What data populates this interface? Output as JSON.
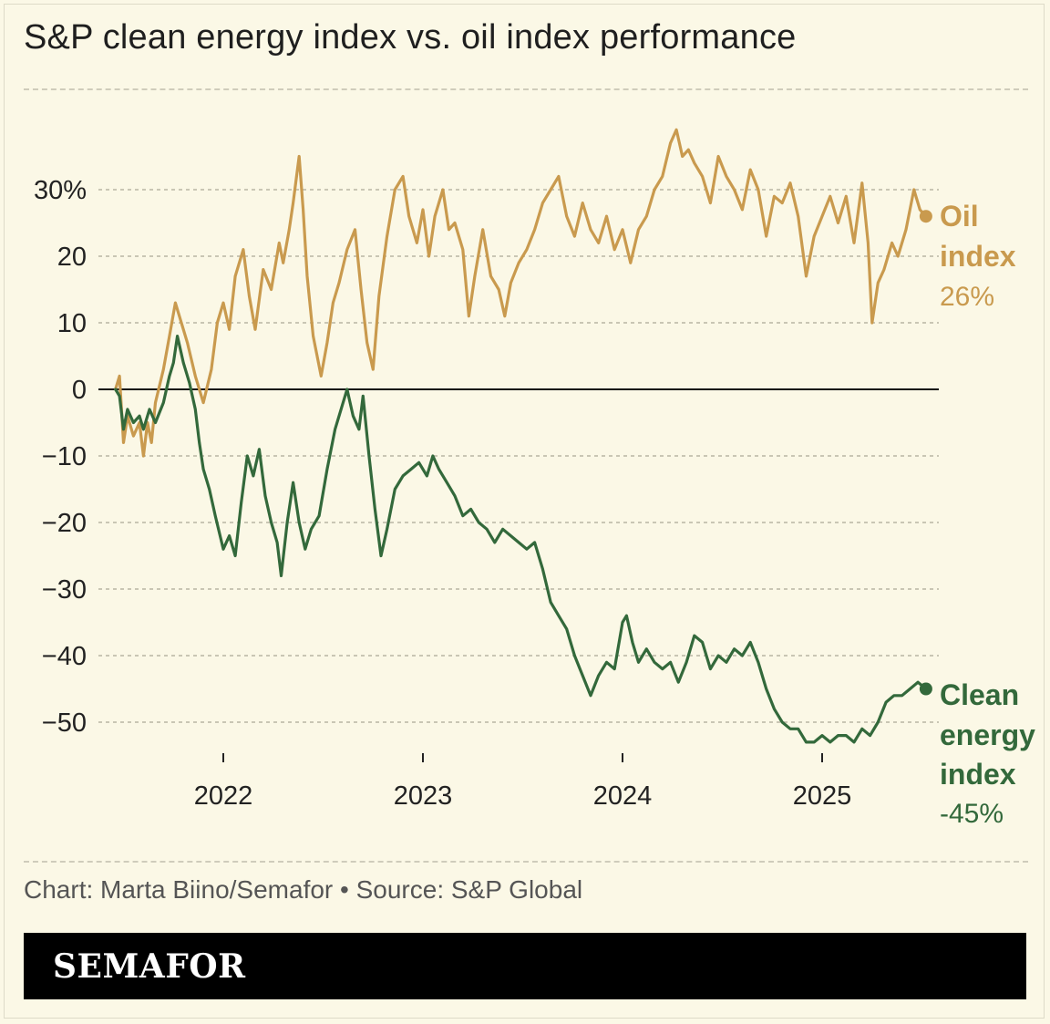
{
  "header": {
    "title": "S&P clean energy index vs. oil index performance"
  },
  "chart_data": {
    "type": "line",
    "title": "S&P clean energy index vs. oil index performance",
    "xlabel": "",
    "ylabel": "",
    "y_unit": "%",
    "ylim": [
      -55,
      40
    ],
    "xlim": [
      2021.45,
      2025.55
    ],
    "y_ticks": [
      {
        "value": 30,
        "label": "30%"
      },
      {
        "value": 20,
        "label": "20"
      },
      {
        "value": 10,
        "label": "10"
      },
      {
        "value": 0,
        "label": "0"
      },
      {
        "value": -10,
        "label": "−10"
      },
      {
        "value": -20,
        "label": "−20"
      },
      {
        "value": -30,
        "label": "−30"
      },
      {
        "value": -40,
        "label": "−40"
      },
      {
        "value": -50,
        "label": "−50"
      }
    ],
    "x_ticks": [
      {
        "value": 2022,
        "label": "2022"
      },
      {
        "value": 2023,
        "label": "2023"
      },
      {
        "value": 2024,
        "label": "2024"
      },
      {
        "value": 2025,
        "label": "2025"
      }
    ],
    "grid": true,
    "series": [
      {
        "name": "Oil index",
        "label_line1": "Oil",
        "label_line2": "index",
        "end_value_label": "26%",
        "color": "#c99a4e",
        "points": [
          [
            2021.46,
            0
          ],
          [
            2021.48,
            2
          ],
          [
            2021.5,
            -8
          ],
          [
            2021.52,
            -4
          ],
          [
            2021.55,
            -7
          ],
          [
            2021.58,
            -5
          ],
          [
            2021.6,
            -10
          ],
          [
            2021.62,
            -5
          ],
          [
            2021.64,
            -8
          ],
          [
            2021.66,
            -2
          ],
          [
            2021.7,
            3
          ],
          [
            2021.73,
            8
          ],
          [
            2021.76,
            13
          ],
          [
            2021.79,
            10
          ],
          [
            2021.82,
            7
          ],
          [
            2021.86,
            2
          ],
          [
            2021.9,
            -2
          ],
          [
            2021.94,
            3
          ],
          [
            2021.97,
            10
          ],
          [
            2022.0,
            13
          ],
          [
            2022.03,
            9
          ],
          [
            2022.06,
            17
          ],
          [
            2022.1,
            21
          ],
          [
            2022.13,
            14
          ],
          [
            2022.16,
            9
          ],
          [
            2022.2,
            18
          ],
          [
            2022.24,
            15
          ],
          [
            2022.28,
            22
          ],
          [
            2022.3,
            19
          ],
          [
            2022.33,
            24
          ],
          [
            2022.35,
            28
          ],
          [
            2022.38,
            35
          ],
          [
            2022.4,
            27
          ],
          [
            2022.42,
            17
          ],
          [
            2022.45,
            8
          ],
          [
            2022.49,
            2
          ],
          [
            2022.52,
            7
          ],
          [
            2022.55,
            13
          ],
          [
            2022.58,
            16
          ],
          [
            2022.62,
            21
          ],
          [
            2022.66,
            24
          ],
          [
            2022.69,
            15
          ],
          [
            2022.72,
            7
          ],
          [
            2022.75,
            3
          ],
          [
            2022.78,
            14
          ],
          [
            2022.82,
            23
          ],
          [
            2022.86,
            30
          ],
          [
            2022.9,
            32
          ],
          [
            2022.93,
            26
          ],
          [
            2022.97,
            22
          ],
          [
            2023.0,
            27
          ],
          [
            2023.03,
            20
          ],
          [
            2023.06,
            26
          ],
          [
            2023.1,
            30
          ],
          [
            2023.13,
            24
          ],
          [
            2023.16,
            25
          ],
          [
            2023.2,
            21
          ],
          [
            2023.23,
            11
          ],
          [
            2023.26,
            17
          ],
          [
            2023.3,
            24
          ],
          [
            2023.34,
            17
          ],
          [
            2023.38,
            15
          ],
          [
            2023.41,
            11
          ],
          [
            2023.44,
            16
          ],
          [
            2023.48,
            19
          ],
          [
            2023.52,
            21
          ],
          [
            2023.56,
            24
          ],
          [
            2023.6,
            28
          ],
          [
            2023.64,
            30
          ],
          [
            2023.68,
            32
          ],
          [
            2023.72,
            26
          ],
          [
            2023.76,
            23
          ],
          [
            2023.8,
            28
          ],
          [
            2023.84,
            24
          ],
          [
            2023.88,
            22
          ],
          [
            2023.92,
            26
          ],
          [
            2023.96,
            21
          ],
          [
            2024.0,
            24
          ],
          [
            2024.04,
            19
          ],
          [
            2024.08,
            24
          ],
          [
            2024.12,
            26
          ],
          [
            2024.16,
            30
          ],
          [
            2024.2,
            32
          ],
          [
            2024.24,
            37
          ],
          [
            2024.27,
            39
          ],
          [
            2024.3,
            35
          ],
          [
            2024.33,
            36
          ],
          [
            2024.36,
            34
          ],
          [
            2024.4,
            32
          ],
          [
            2024.44,
            28
          ],
          [
            2024.48,
            35
          ],
          [
            2024.52,
            32
          ],
          [
            2024.56,
            30
          ],
          [
            2024.6,
            27
          ],
          [
            2024.64,
            33
          ],
          [
            2024.68,
            30
          ],
          [
            2024.72,
            23
          ],
          [
            2024.76,
            29
          ],
          [
            2024.8,
            28
          ],
          [
            2024.84,
            31
          ],
          [
            2024.88,
            26
          ],
          [
            2024.92,
            17
          ],
          [
            2024.96,
            23
          ],
          [
            2025.0,
            26
          ],
          [
            2025.04,
            29
          ],
          [
            2025.08,
            25
          ],
          [
            2025.12,
            29
          ],
          [
            2025.16,
            22
          ],
          [
            2025.2,
            31
          ],
          [
            2025.23,
            22
          ],
          [
            2025.25,
            10
          ],
          [
            2025.28,
            16
          ],
          [
            2025.31,
            18
          ],
          [
            2025.35,
            22
          ],
          [
            2025.38,
            20
          ],
          [
            2025.42,
            24
          ],
          [
            2025.46,
            30
          ],
          [
            2025.49,
            27
          ],
          [
            2025.52,
            26
          ]
        ]
      },
      {
        "name": "Clean energy index",
        "label_line1": "Clean",
        "label_line2": "energy",
        "label_line3": "index",
        "end_value_label": "-45%",
        "color": "#33693b",
        "points": [
          [
            2021.46,
            0
          ],
          [
            2021.48,
            -1
          ],
          [
            2021.5,
            -6
          ],
          [
            2021.52,
            -3
          ],
          [
            2021.55,
            -5
          ],
          [
            2021.58,
            -4
          ],
          [
            2021.6,
            -6
          ],
          [
            2021.63,
            -3
          ],
          [
            2021.66,
            -5
          ],
          [
            2021.7,
            -2
          ],
          [
            2021.73,
            2
          ],
          [
            2021.75,
            4
          ],
          [
            2021.77,
            8
          ],
          [
            2021.8,
            4
          ],
          [
            2021.83,
            1
          ],
          [
            2021.86,
            -3
          ],
          [
            2021.88,
            -8
          ],
          [
            2021.9,
            -12
          ],
          [
            2021.93,
            -15
          ],
          [
            2021.96,
            -19
          ],
          [
            2022.0,
            -24
          ],
          [
            2022.03,
            -22
          ],
          [
            2022.06,
            -25
          ],
          [
            2022.09,
            -17
          ],
          [
            2022.12,
            -10
          ],
          [
            2022.15,
            -13
          ],
          [
            2022.18,
            -9
          ],
          [
            2022.21,
            -16
          ],
          [
            2022.24,
            -20
          ],
          [
            2022.27,
            -23
          ],
          [
            2022.29,
            -28
          ],
          [
            2022.32,
            -20
          ],
          [
            2022.35,
            -14
          ],
          [
            2022.38,
            -20
          ],
          [
            2022.41,
            -24
          ],
          [
            2022.44,
            -21
          ],
          [
            2022.48,
            -19
          ],
          [
            2022.52,
            -12
          ],
          [
            2022.56,
            -6
          ],
          [
            2022.6,
            -2
          ],
          [
            2022.62,
            0
          ],
          [
            2022.65,
            -4
          ],
          [
            2022.68,
            -6
          ],
          [
            2022.7,
            -1
          ],
          [
            2022.73,
            -10
          ],
          [
            2022.76,
            -18
          ],
          [
            2022.79,
            -25
          ],
          [
            2022.82,
            -21
          ],
          [
            2022.86,
            -15
          ],
          [
            2022.9,
            -13
          ],
          [
            2022.94,
            -12
          ],
          [
            2022.98,
            -11
          ],
          [
            2023.02,
            -13
          ],
          [
            2023.05,
            -10
          ],
          [
            2023.08,
            -12
          ],
          [
            2023.12,
            -14
          ],
          [
            2023.16,
            -16
          ],
          [
            2023.2,
            -19
          ],
          [
            2023.24,
            -18
          ],
          [
            2023.28,
            -20
          ],
          [
            2023.32,
            -21
          ],
          [
            2023.36,
            -23
          ],
          [
            2023.4,
            -21
          ],
          [
            2023.44,
            -22
          ],
          [
            2023.48,
            -23
          ],
          [
            2023.52,
            -24
          ],
          [
            2023.56,
            -23
          ],
          [
            2023.6,
            -27
          ],
          [
            2023.64,
            -32
          ],
          [
            2023.68,
            -34
          ],
          [
            2023.72,
            -36
          ],
          [
            2023.76,
            -40
          ],
          [
            2023.8,
            -43
          ],
          [
            2023.84,
            -46
          ],
          [
            2023.88,
            -43
          ],
          [
            2023.92,
            -41
          ],
          [
            2023.96,
            -42
          ],
          [
            2024.0,
            -35
          ],
          [
            2024.02,
            -34
          ],
          [
            2024.05,
            -38
          ],
          [
            2024.08,
            -41
          ],
          [
            2024.12,
            -39
          ],
          [
            2024.16,
            -41
          ],
          [
            2024.2,
            -42
          ],
          [
            2024.24,
            -41
          ],
          [
            2024.28,
            -44
          ],
          [
            2024.32,
            -41
          ],
          [
            2024.36,
            -37
          ],
          [
            2024.4,
            -38
          ],
          [
            2024.44,
            -42
          ],
          [
            2024.48,
            -40
          ],
          [
            2024.52,
            -41
          ],
          [
            2024.56,
            -39
          ],
          [
            2024.6,
            -40
          ],
          [
            2024.64,
            -38
          ],
          [
            2024.68,
            -41
          ],
          [
            2024.72,
            -45
          ],
          [
            2024.76,
            -48
          ],
          [
            2024.8,
            -50
          ],
          [
            2024.84,
            -51
          ],
          [
            2024.88,
            -51
          ],
          [
            2024.92,
            -53
          ],
          [
            2024.96,
            -53
          ],
          [
            2025.0,
            -52
          ],
          [
            2025.04,
            -53
          ],
          [
            2025.08,
            -52
          ],
          [
            2025.12,
            -52
          ],
          [
            2025.16,
            -53
          ],
          [
            2025.2,
            -51
          ],
          [
            2025.24,
            -52
          ],
          [
            2025.28,
            -50
          ],
          [
            2025.32,
            -47
          ],
          [
            2025.36,
            -46
          ],
          [
            2025.4,
            -46
          ],
          [
            2025.44,
            -45
          ],
          [
            2025.48,
            -44
          ],
          [
            2025.52,
            -45
          ]
        ]
      }
    ]
  },
  "footer": {
    "credit": "Chart: Marta Biino/Semafor • Source: S&P Global",
    "brand": "SEMAFOR"
  }
}
